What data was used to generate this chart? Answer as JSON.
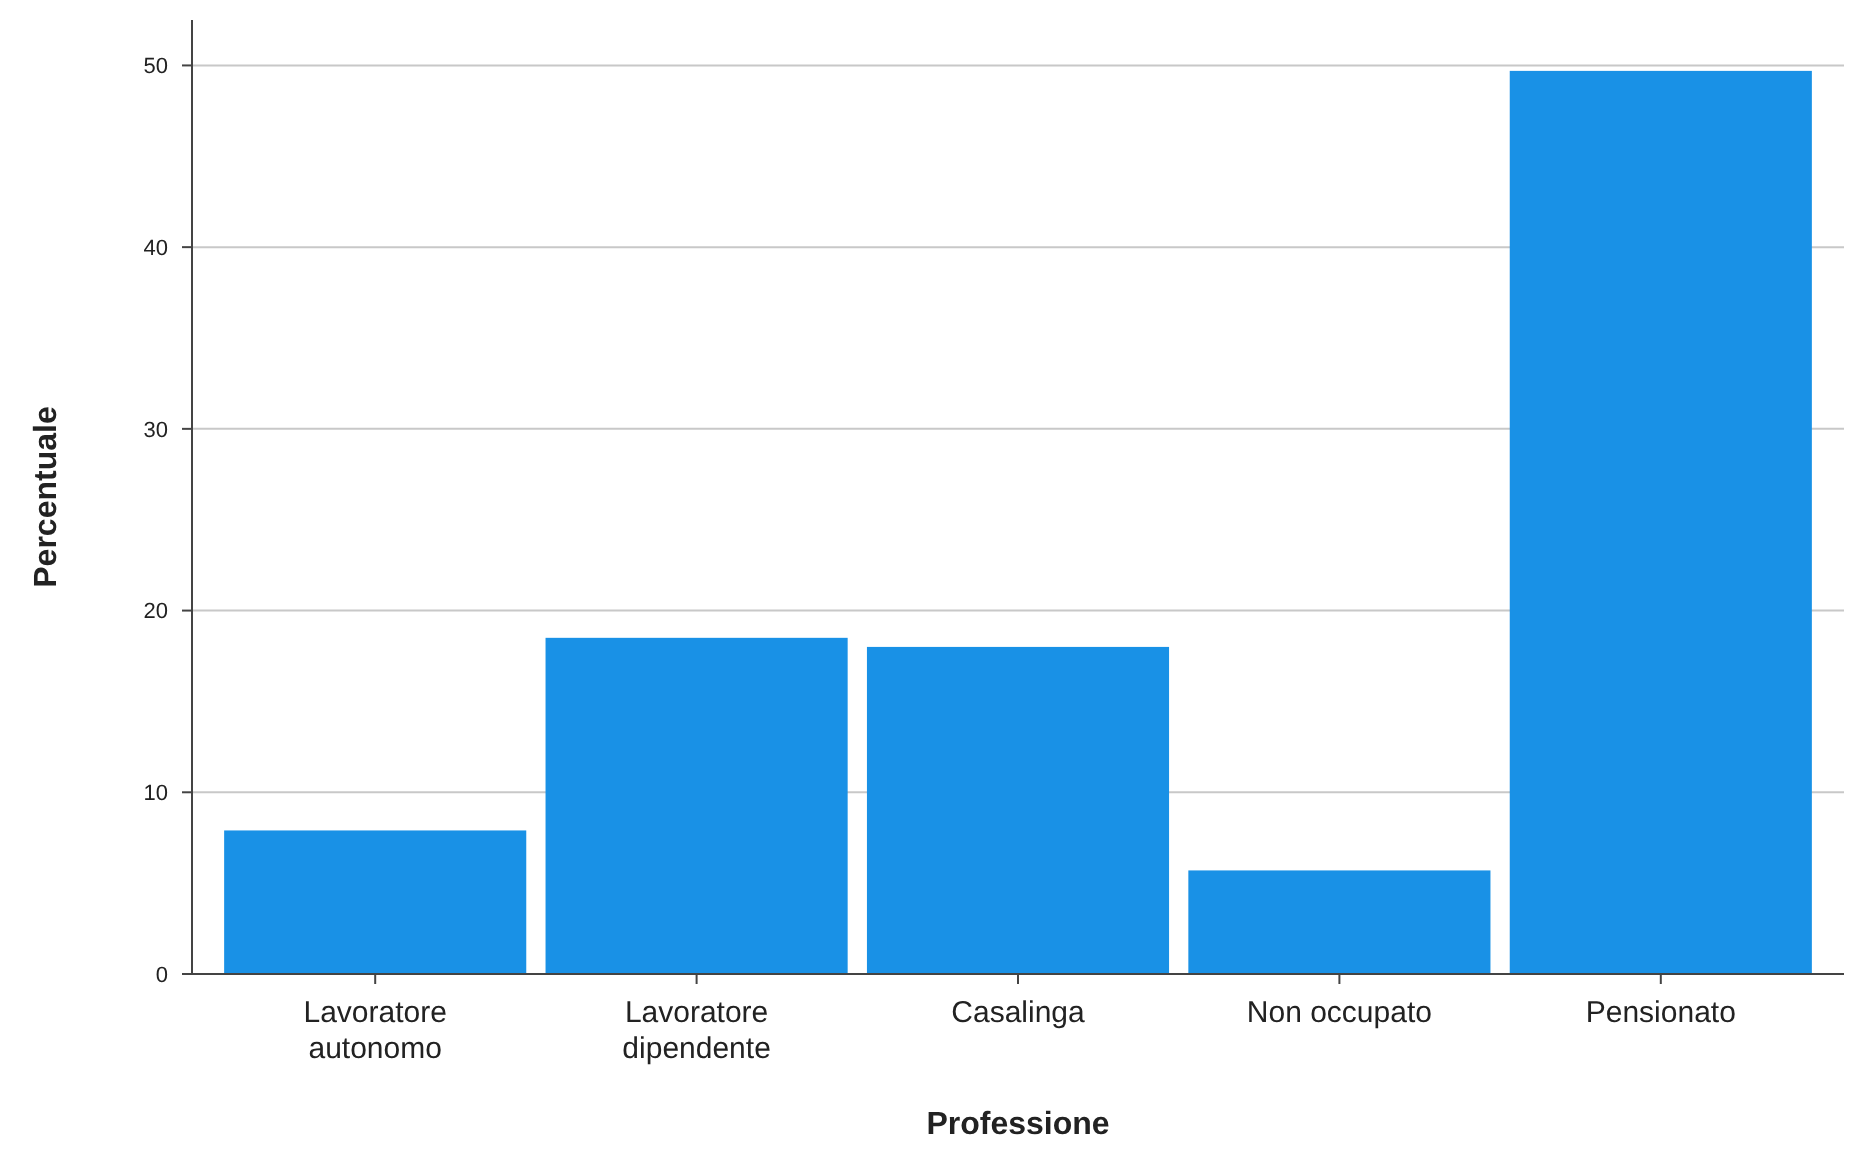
{
  "chart_data": {
    "type": "bar",
    "xlabel": "Professione",
    "ylabel": "Percentuale",
    "categories": [
      "Lavoratore autonomo",
      "Lavoratore dipendente",
      "Casalinga",
      "Non occupato",
      "Pensionato"
    ],
    "values": [
      7.9,
      18.5,
      18.0,
      5.7,
      49.7
    ],
    "color": "#1991e6",
    "ylim": [
      0,
      52.5
    ],
    "yticks": [
      0,
      10,
      20,
      30,
      40,
      50
    ],
    "grid": "y"
  }
}
